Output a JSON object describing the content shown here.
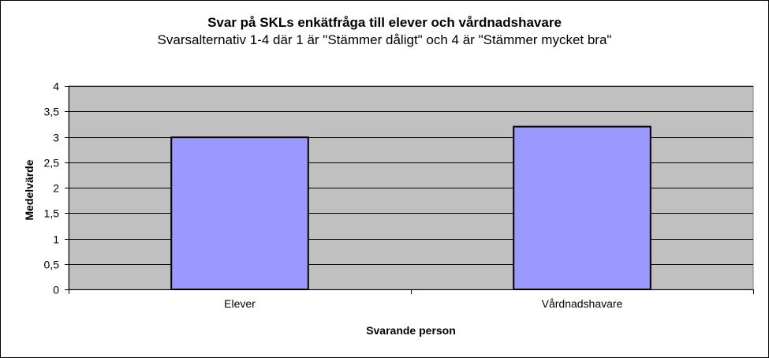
{
  "chart_data": {
    "type": "bar",
    "title": "Svar på SKLs enkätfråga till elever och vårdnadshavare",
    "subtitle": "Svarsalternativ 1-4 där 1 är \"Stämmer dåligt\" och 4 är \"Stämmer mycket bra\"",
    "xlabel": "Svarande person",
    "ylabel": "Medelvärde",
    "categories": [
      "Elever",
      "Vårdnadshavare"
    ],
    "values": [
      2.99,
      3.2
    ],
    "ylim": [
      0,
      4
    ],
    "yticks": [
      "0",
      "0,5",
      "1",
      "1,5",
      "2",
      "2,5",
      "3",
      "3,5",
      "4"
    ],
    "ytick_values": [
      0,
      0.5,
      1,
      1.5,
      2,
      2.5,
      3,
      3.5,
      4
    ],
    "grid": true,
    "legend": "none",
    "colors": {
      "plot_background": "#c0c0c0",
      "bar_fill": "#9999ff",
      "bar_stroke": "#000000",
      "gridline": "#000000"
    }
  }
}
